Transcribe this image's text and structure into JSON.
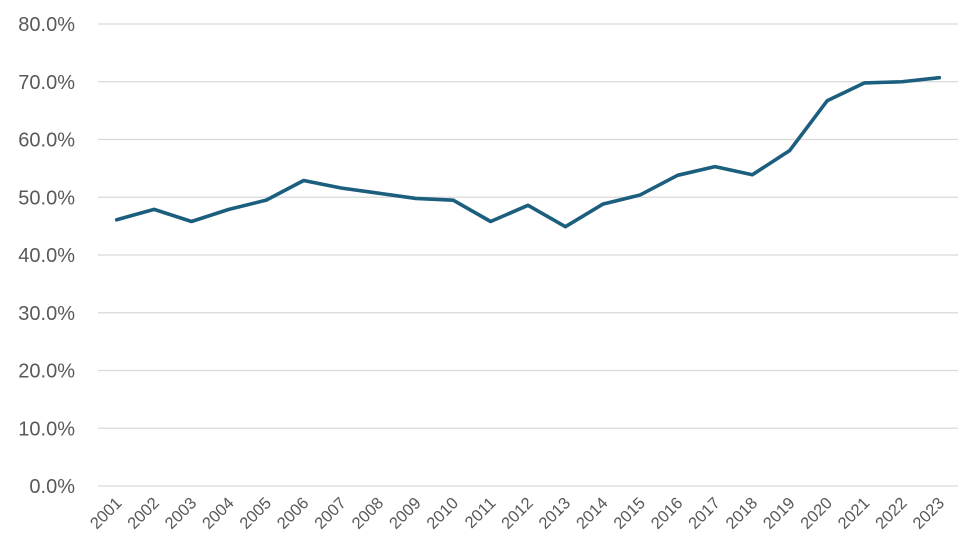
{
  "chart_data": {
    "type": "line",
    "title": "",
    "xlabel": "",
    "ylabel": "",
    "categories": [
      "2001",
      "2002",
      "2003",
      "2004",
      "2005",
      "2006",
      "2007",
      "2008",
      "2009",
      "2010",
      "2011",
      "2012",
      "2013",
      "2014",
      "2015",
      "2016",
      "2017",
      "2018",
      "2019",
      "2020",
      "2021",
      "2022",
      "2023"
    ],
    "series": [
      {
        "values": [
          46.1,
          47.9,
          45.8,
          47.9,
          49.5,
          52.9,
          51.6,
          50.7,
          49.8,
          49.5,
          45.8,
          48.6,
          44.9,
          48.8,
          50.4,
          53.8,
          55.3,
          53.9,
          58.1,
          66.7,
          69.8,
          70.0,
          70.7
        ],
        "color": "#1b5e7e"
      }
    ],
    "ylim": [
      0,
      80
    ],
    "yticks": [
      0,
      10,
      20,
      30,
      40,
      50,
      60,
      70,
      80
    ],
    "ytick_labels": [
      "0.0%",
      "10.0%",
      "20.0%",
      "30.0%",
      "40.0%",
      "50.0%",
      "60.0%",
      "70.0%",
      "80.0%"
    ],
    "grid": true,
    "legend": "none",
    "gridline_color": "#d9d9d9"
  }
}
